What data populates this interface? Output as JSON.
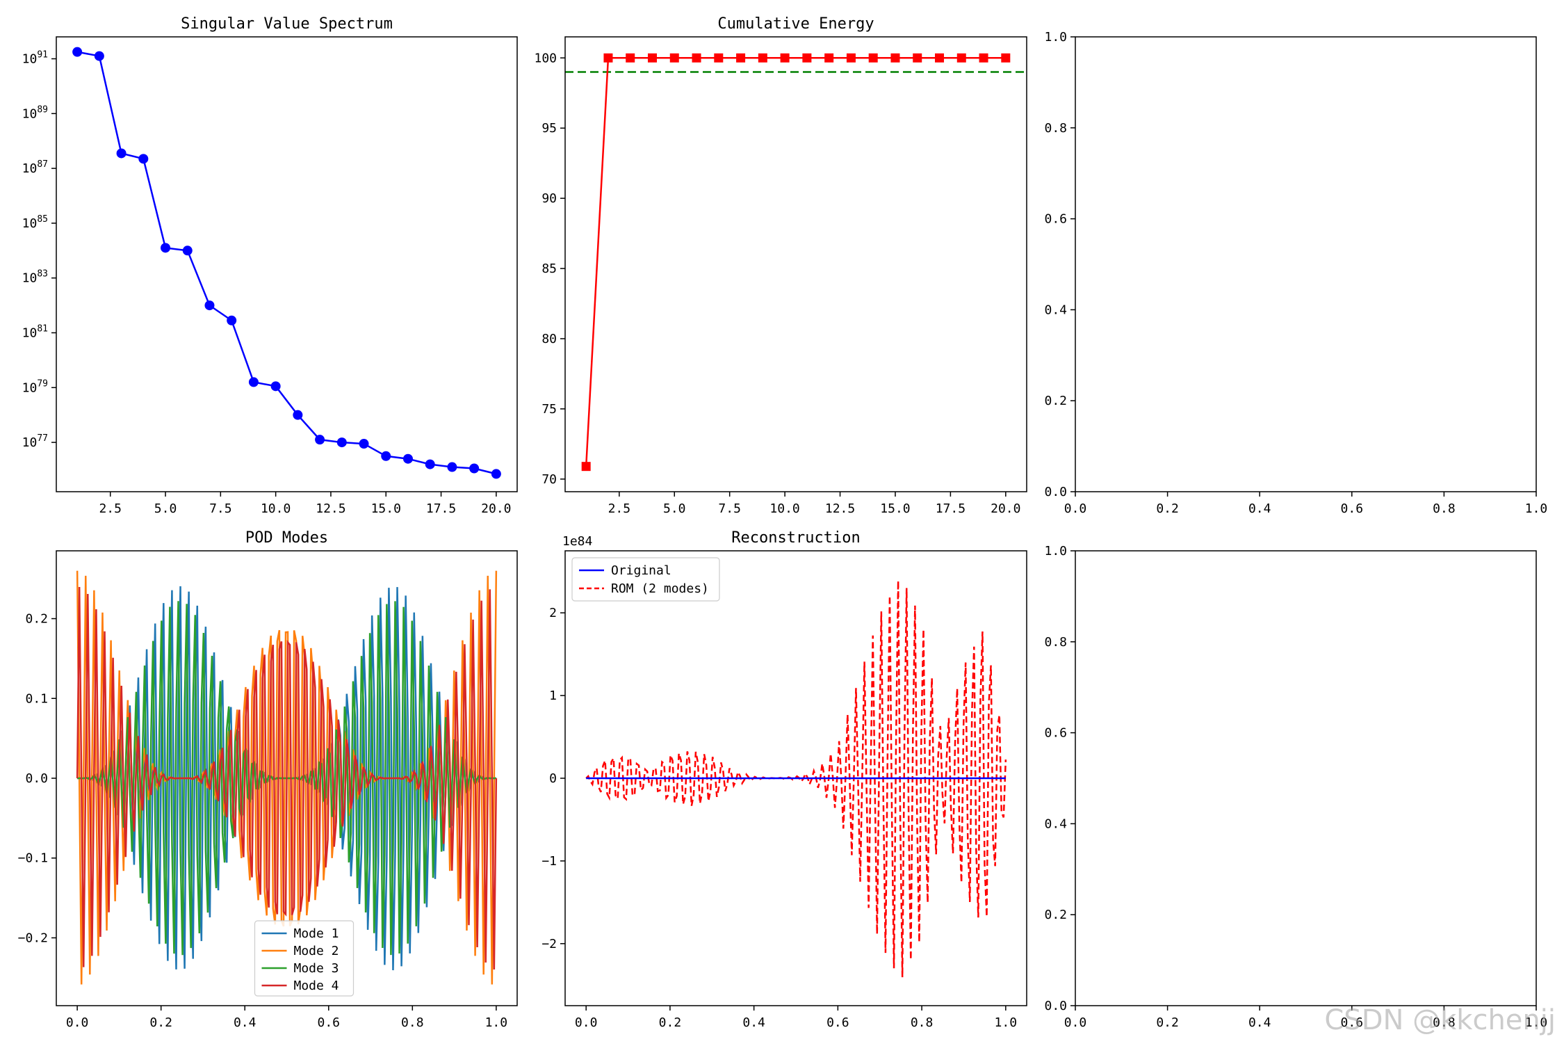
{
  "watermark": "CSDN @kkchenjj",
  "chart_data": [
    {
      "type": "line",
      "title": "Singular Value Spectrum",
      "xlabel": "",
      "ylabel": "",
      "yscale": "log",
      "xlim": [
        0.05,
        20.95
      ],
      "ylim_log10": [
        75.2,
        91.8
      ],
      "xticks": [
        2.5,
        5.0,
        7.5,
        10.0,
        12.5,
        15.0,
        17.5,
        20.0
      ],
      "xtick_labels": [
        "2.5",
        "5.0",
        "7.5",
        "10.0",
        "12.5",
        "15.0",
        "17.5",
        "20.0"
      ],
      "ytick_exponents": [
        77,
        79,
        81,
        83,
        85,
        87,
        89,
        91
      ],
      "grid": false,
      "series": [
        {
          "color": "#0000ff",
          "marker": "circle",
          "x": [
            1,
            2,
            3,
            4,
            5,
            6,
            7,
            8,
            9,
            10,
            11,
            12,
            13,
            14,
            15,
            16,
            17,
            18,
            19,
            20
          ],
          "y_log10": [
            91.25,
            91.1,
            87.55,
            87.35,
            84.1,
            84.0,
            82.0,
            81.45,
            79.2,
            79.05,
            78.0,
            77.1,
            77.0,
            76.95,
            76.5,
            76.4,
            76.2,
            76.1,
            76.05,
            75.85
          ]
        }
      ]
    },
    {
      "type": "line",
      "title": "Cumulative Energy",
      "xlabel": "",
      "ylabel": "",
      "xlim": [
        0.05,
        20.95
      ],
      "ylim": [
        69.1,
        101.5
      ],
      "xticks": [
        2.5,
        5.0,
        7.5,
        10.0,
        12.5,
        15.0,
        17.5,
        20.0
      ],
      "xtick_labels": [
        "2.5",
        "5.0",
        "7.5",
        "10.0",
        "12.5",
        "15.0",
        "17.5",
        "20.0"
      ],
      "yticks": [
        70,
        75,
        80,
        85,
        90,
        95,
        100
      ],
      "ytick_labels": [
        "70",
        "75",
        "80",
        "85",
        "90",
        "95",
        "100"
      ],
      "grid": false,
      "hline": {
        "y": 99,
        "color": "#008000",
        "style": "dashed"
      },
      "series": [
        {
          "color": "#ff0000",
          "marker": "square",
          "x": [
            1,
            2,
            3,
            4,
            5,
            6,
            7,
            8,
            9,
            10,
            11,
            12,
            13,
            14,
            15,
            16,
            17,
            18,
            19,
            20
          ],
          "y": [
            70.9,
            100,
            100,
            100,
            100,
            100,
            100,
            100,
            100,
            100,
            100,
            100,
            100,
            100,
            100,
            100,
            100,
            100,
            100,
            100
          ]
        }
      ]
    },
    {
      "type": "empty",
      "title": "",
      "xlim": [
        0,
        1
      ],
      "ylim": [
        0,
        1
      ],
      "xticks": [
        0,
        0.2,
        0.4,
        0.6,
        0.8,
        1.0
      ],
      "xtick_labels": [
        "0.0",
        "0.2",
        "0.4",
        "0.6",
        "0.8",
        "1.0"
      ],
      "yticks": [
        0,
        0.2,
        0.4,
        0.6,
        0.8,
        1.0
      ],
      "ytick_labels": [
        "0.0",
        "0.2",
        "0.4",
        "0.6",
        "0.8",
        "1.0"
      ]
    },
    {
      "type": "line",
      "title": "POD Modes",
      "xlabel": "",
      "ylabel": "",
      "xlim": [
        -0.05,
        1.05
      ],
      "ylim": [
        -0.285,
        0.285
      ],
      "xticks": [
        0,
        0.2,
        0.4,
        0.6,
        0.8,
        1.0
      ],
      "xtick_labels": [
        "0.0",
        "0.2",
        "0.4",
        "0.6",
        "0.8",
        "1.0"
      ],
      "yticks": [
        -0.2,
        -0.1,
        0.0,
        0.1,
        0.2
      ],
      "ytick_labels": [
        "−0.2",
        "−0.1",
        "0.0",
        "0.1",
        "0.2"
      ],
      "grid": false,
      "legend_position": "lower-center",
      "x_start": 0,
      "x_end": 1,
      "num_points": 200,
      "series": [
        {
          "name": "Mode 1",
          "color": "#1f77b4",
          "amplitude": 0.26,
          "oscillation_frequency": 50,
          "oscillation_phase": 0.0,
          "envelope_frequency": 2,
          "envelope": "sin_pow3"
        },
        {
          "name": "Mode 2",
          "color": "#ff7f0e",
          "amplitude": 0.26,
          "oscillation_frequency": 50,
          "oscillation_phase": 1.57,
          "envelope_frequency": 2,
          "envelope": "cos_pow3"
        },
        {
          "name": "Mode 3",
          "color": "#2ca02c",
          "amplitude": 0.24,
          "oscillation_frequency": 50,
          "oscillation_phase": 1.57,
          "envelope_frequency": 2,
          "envelope": "sin_pow3"
        },
        {
          "name": "Mode 4",
          "color": "#d62728",
          "amplitude": 0.24,
          "oscillation_frequency": 50,
          "oscillation_phase": 0.0,
          "envelope_frequency": 2,
          "envelope": "cos_pow3"
        }
      ]
    },
    {
      "type": "line",
      "title": "Reconstruction",
      "xlabel": "",
      "ylabel": "",
      "y_offset_label": "1e84",
      "xlim": [
        -0.05,
        1.05
      ],
      "ylim": [
        -2.75,
        2.75
      ],
      "xticks": [
        0,
        0.2,
        0.4,
        0.6,
        0.8,
        1.0
      ],
      "xtick_labels": [
        "0.0",
        "0.2",
        "0.4",
        "0.6",
        "0.8",
        "1.0"
      ],
      "yticks": [
        -2,
        -1,
        0,
        1,
        2
      ],
      "ytick_labels": [
        "−2",
        "−1",
        "0",
        "1",
        "2"
      ],
      "grid": false,
      "legend_position": "upper-left",
      "x_start": 0,
      "x_end": 1,
      "num_points": 200,
      "series": [
        {
          "name": "Original",
          "color": "#0000ff",
          "style": "solid",
          "values_note_zero": 0
        },
        {
          "name": "ROM (2 modes)",
          "color": "#ff0000",
          "style": "dashed",
          "oscillation_frequency": 50,
          "envelope_knots_x": [
            0.0,
            0.05,
            0.1,
            0.15,
            0.2,
            0.25,
            0.3,
            0.35,
            0.4,
            0.45,
            0.5,
            0.55,
            0.6,
            0.65,
            0.7,
            0.75,
            0.8,
            0.85,
            0.9,
            0.95,
            1.0
          ],
          "envelope_knots_y": [
            0.0,
            0.3,
            0.35,
            0.1,
            0.35,
            0.4,
            0.3,
            0.1,
            0.02,
            0.0,
            0.02,
            0.1,
            0.4,
            1.2,
            2.0,
            2.5,
            2.0,
            0.5,
            1.5,
            2.1,
            0.4
          ]
        }
      ]
    },
    {
      "type": "empty",
      "title": "",
      "xlim": [
        0,
        1
      ],
      "ylim": [
        0,
        1
      ],
      "xticks": [
        0,
        0.2,
        0.4,
        0.6,
        0.8,
        1.0
      ],
      "xtick_labels": [
        "0.0",
        "0.2",
        "0.4",
        "0.6",
        "0.8",
        "1.0"
      ],
      "yticks": [
        0,
        0.2,
        0.4,
        0.6,
        0.8,
        1.0
      ],
      "ytick_labels": [
        "0.0",
        "0.2",
        "0.4",
        "0.6",
        "0.8",
        "1.0"
      ]
    }
  ]
}
